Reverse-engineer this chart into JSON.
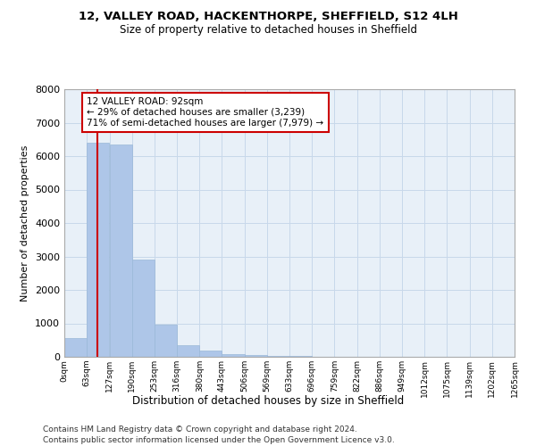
{
  "title_line1": "12, VALLEY ROAD, HACKENTHORPE, SHEFFIELD, S12 4LH",
  "title_line2": "Size of property relative to detached houses in Sheffield",
  "xlabel": "Distribution of detached houses by size in Sheffield",
  "ylabel": "Number of detached properties",
  "bin_edges": [
    0,
    63,
    127,
    190,
    253,
    316,
    380,
    443,
    506,
    569,
    633,
    696,
    759,
    822,
    886,
    949,
    1012,
    1075,
    1139,
    1202,
    1265
  ],
  "bin_labels": [
    "0sqm",
    "63sqm",
    "127sqm",
    "190sqm",
    "253sqm",
    "316sqm",
    "380sqm",
    "443sqm",
    "506sqm",
    "569sqm",
    "633sqm",
    "696sqm",
    "759sqm",
    "822sqm",
    "886sqm",
    "949sqm",
    "1012sqm",
    "1075sqm",
    "1139sqm",
    "1202sqm",
    "1265sqm"
  ],
  "bar_heights": [
    550,
    6400,
    6350,
    2900,
    950,
    340,
    175,
    90,
    55,
    35,
    20,
    12,
    8,
    5,
    3,
    2,
    1,
    1,
    0,
    0
  ],
  "bar_color": "#aec6e8",
  "bar_edge_color": "#9ab8d8",
  "property_size": 92,
  "vline_color": "#cc0000",
  "vline_x": 92,
  "annotation_text": "12 VALLEY ROAD: 92sqm\n← 29% of detached houses are smaller (3,239)\n71% of semi-detached houses are larger (7,979) →",
  "annotation_box_color": "#ffffff",
  "annotation_box_edge": "#cc0000",
  "ylim": [
    0,
    8000
  ],
  "yticks": [
    0,
    1000,
    2000,
    3000,
    4000,
    5000,
    6000,
    7000,
    8000
  ],
  "grid_color": "#c8d8ea",
  "bg_color": "#e8f0f8",
  "footer_line1": "Contains HM Land Registry data © Crown copyright and database right 2024.",
  "footer_line2": "Contains public sector information licensed under the Open Government Licence v3.0."
}
